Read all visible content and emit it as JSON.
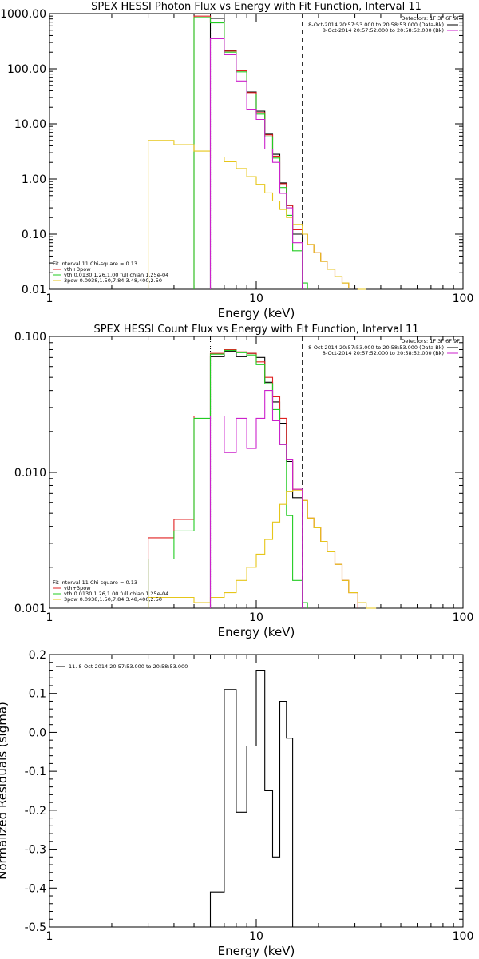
{
  "chart_data": [
    {
      "type": "line",
      "title": "SPEX HESSI Photon Flux vs Energy with Fit Function, Interval 11",
      "xlabel": "Energy (keV)",
      "ylabel": "",
      "xscale": "log",
      "yscale": "log",
      "xlim": [
        1,
        100
      ],
      "ylim": [
        0.01,
        1000
      ],
      "x_ticks": [
        "1",
        "10",
        "100"
      ],
      "y_ticks": [
        "0.01",
        "0.10",
        "1.00",
        "10.00",
        "100.00",
        "1000.00"
      ],
      "detectors": "Detectors: 1F 3F 6F 9F",
      "legend_right": [
        "8-Oct-2014 20:57:53.000 to 20:58:53.000 (Data-Bk)",
        "8-Oct-2014 20:57:52.000 to 20:58:52.000 (Bk)"
      ],
      "legend_left": [
        "Fit Interval 11   Chi-square = 0.13",
        "vth+3pow",
        "vth 0.0130,1.26,1.00  full chian 1.25e-04",
        "3pow 0.0938,1.50,7.84,3.48,400,2.50"
      ],
      "fit_range_keV": [
        6.0,
        16.7
      ],
      "bin_edges": [
        3.0,
        4.0,
        5.0,
        6.0,
        7.0,
        8.0,
        9.0,
        10.0,
        11.0,
        12.0,
        13.0,
        14.0,
        15.0,
        16.7,
        17.7,
        19.0,
        20.5,
        22.0,
        24.0,
        26.0,
        28.0,
        31.0,
        34.0,
        38.0
      ],
      "series": [
        {
          "name": "Data-Bk",
          "color": "#000000",
          "values": [
            null,
            null,
            null,
            820,
            215,
            95,
            38,
            17,
            6.5,
            2.8,
            0.85,
            0.33,
            0.1,
            null,
            null,
            null,
            null,
            null,
            null,
            null,
            null,
            null,
            null
          ]
        },
        {
          "name": "vth+3pow",
          "color": "#e02020",
          "values": [
            null,
            null,
            900,
            700,
            210,
            92,
            37,
            16,
            6.3,
            2.6,
            0.82,
            0.33,
            0.12,
            0.1,
            0.065,
            0.046,
            0.032,
            0.023,
            0.017,
            0.013,
            0.0105,
            null,
            null
          ]
        },
        {
          "name": "vth",
          "color": "#22cc22",
          "values": [
            null,
            null,
            850,
            680,
            200,
            88,
            35,
            15,
            5.8,
            2.4,
            0.7,
            0.22,
            0.05,
            0.013,
            null,
            null,
            null,
            null,
            null,
            null,
            null,
            null,
            null
          ]
        },
        {
          "name": "3pow",
          "color": "#e6c619",
          "values": [
            5.0,
            4.2,
            3.2,
            2.5,
            2.05,
            1.55,
            1.1,
            0.8,
            0.56,
            0.4,
            0.28,
            0.2,
            0.15,
            0.1,
            0.065,
            0.046,
            0.032,
            0.023,
            0.017,
            0.013,
            0.0105,
            0.0095,
            null
          ]
        },
        {
          "name": "Bk",
          "color": "#cc22cc",
          "values": [
            null,
            null,
            null,
            350,
            180,
            60,
            18,
            12,
            3.5,
            2.0,
            0.55,
            0.3,
            0.07,
            null,
            null,
            null,
            null,
            null,
            null,
            null,
            null,
            null,
            null
          ]
        }
      ]
    },
    {
      "type": "line",
      "title": "SPEX HESSI Count Flux vs Energy with Fit Function, Interval 11",
      "xlabel": "Energy (keV)",
      "ylabel": "",
      "xscale": "log",
      "yscale": "log",
      "xlim": [
        1,
        100
      ],
      "ylim": [
        0.001,
        0.1
      ],
      "x_ticks": [
        "1",
        "10",
        "100"
      ],
      "y_ticks": [
        "0.001",
        "0.010",
        "0.100"
      ],
      "detectors": "Detectors: 1F 3F 6F 9F",
      "legend_right": [
        "8-Oct-2014 20:57:53.000 to 20:58:53.000 (Data-Bk)",
        "8-Oct-2014 20:57:52.000 to 20:58:52.000 (Bk)"
      ],
      "legend_left": [
        "Fit Interval 11   Chi-square = 0.13",
        "vth+3pow",
        "vth 0.0130,1.26,1.00  full chian 1.25e-04",
        "3pow 0.0938,1.50,7.84,3.48,400,2.50"
      ],
      "fit_range_keV": [
        6.0,
        16.7
      ],
      "bin_edges": [
        3.0,
        4.0,
        5.0,
        6.0,
        7.0,
        8.0,
        9.0,
        10.0,
        11.0,
        12.0,
        13.0,
        14.0,
        15.0,
        16.7,
        17.7,
        19.0,
        20.5,
        22.0,
        24.0,
        26.0,
        28.0,
        31.0,
        34.0,
        38.0
      ],
      "series": [
        {
          "name": "Data-Bk",
          "color": "#000000",
          "values": [
            null,
            null,
            null,
            0.071,
            0.078,
            0.071,
            0.075,
            0.07,
            0.046,
            0.033,
            0.023,
            0.012,
            0.0065,
            null,
            null,
            null,
            null,
            null,
            null,
            null,
            null,
            null,
            null
          ]
        },
        {
          "name": "vth+3pow",
          "color": "#e02020",
          "values": [
            0.0033,
            0.0045,
            0.026,
            0.075,
            0.08,
            0.077,
            0.075,
            0.065,
            0.05,
            0.036,
            0.025,
            0.0125,
            0.0075,
            0.0062,
            0.0046,
            0.0039,
            0.0031,
            0.0026,
            0.0021,
            0.0016,
            0.0013,
            null,
            null
          ]
        },
        {
          "name": "vth",
          "color": "#22cc22",
          "values": [
            0.0023,
            0.0037,
            0.025,
            0.074,
            0.079,
            0.076,
            0.073,
            0.062,
            0.045,
            0.029,
            0.016,
            0.0048,
            0.0016,
            0.0011,
            null,
            null,
            null,
            null,
            null,
            null,
            null,
            null,
            null
          ]
        },
        {
          "name": "3pow",
          "color": "#e6c619",
          "values": [
            0.0012,
            0.0012,
            0.0011,
            0.0012,
            0.0013,
            0.0016,
            0.002,
            0.0025,
            0.0032,
            0.0043,
            0.0058,
            0.0072,
            0.0074,
            0.0062,
            0.0046,
            0.0039,
            0.0031,
            0.0026,
            0.0021,
            0.0016,
            0.0013,
            0.0011,
            0.0008
          ]
        },
        {
          "name": "Bk",
          "color": "#cc22cc",
          "values": [
            null,
            null,
            null,
            0.026,
            0.014,
            0.025,
            0.015,
            0.025,
            0.04,
            0.024,
            0.016,
            0.0125,
            0.0075,
            null,
            null,
            null,
            null,
            null,
            null,
            null,
            null,
            null,
            null
          ]
        }
      ]
    },
    {
      "type": "line",
      "title": "",
      "xlabel": "Energy (keV)",
      "ylabel": "Normalized Residuals (sigma)",
      "xscale": "log",
      "yscale": "linear",
      "xlim": [
        1,
        100
      ],
      "ylim": [
        -0.5,
        0.2
      ],
      "x_ticks": [
        "1",
        "10",
        "100"
      ],
      "y_ticks": [
        "-0.5",
        "-0.4",
        "-0.3",
        "-0.2",
        "-0.1",
        "0.0",
        "0.1",
        "0.2"
      ],
      "legend": "11.  8-Oct-2014 20:57:53.000 to 20:58:53.000",
      "bin_edges": [
        6.0,
        7.0,
        8.0,
        9.0,
        10.0,
        11.0,
        12.0,
        13.0,
        14.0,
        15.0,
        16.7
      ],
      "values": [
        -0.41,
        0.11,
        -0.205,
        -0.035,
        0.16,
        -0.15,
        -0.32,
        0.08,
        -0.015,
        -0.5
      ]
    }
  ]
}
